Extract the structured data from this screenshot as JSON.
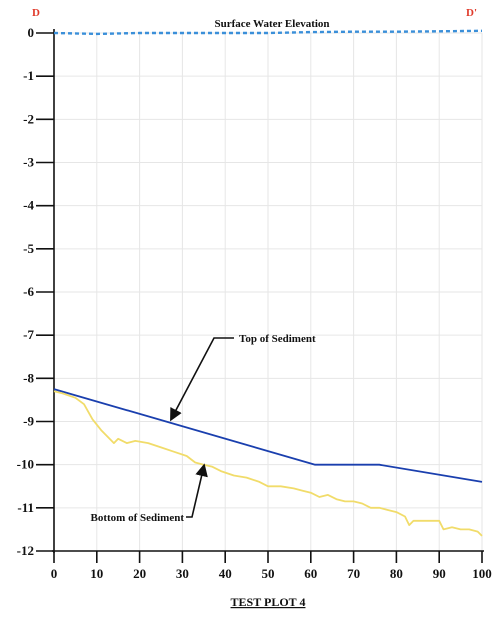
{
  "chart_data": {
    "type": "line",
    "title": "",
    "xlabel": "",
    "ylabel": "",
    "caption": "TEST PLOT 4",
    "corner_left": "D",
    "corner_right": "D'",
    "xlim": [
      0,
      100
    ],
    "ylim": [
      -12,
      0
    ],
    "x_ticks": [
      0,
      10,
      20,
      30,
      40,
      50,
      60,
      70,
      80,
      90,
      100
    ],
    "y_ticks": [
      0,
      -1,
      -2,
      -3,
      -4,
      -5,
      -6,
      -7,
      -8,
      -9,
      -10,
      -11,
      -12
    ],
    "grid": true,
    "series": [
      {
        "name": "Surface Water Elevation",
        "color": "#3a8fd9",
        "style": "dotted",
        "x": [
          0,
          10,
          20,
          30,
          40,
          50,
          60,
          70,
          80,
          90,
          100
        ],
        "y": [
          0,
          -0.02,
          0,
          0,
          0,
          0,
          0.02,
          0.03,
          0.03,
          0.04,
          0.05
        ]
      },
      {
        "name": "Top of Sediment",
        "color": "#1a3fae",
        "style": "solid",
        "x": [
          0,
          61,
          76,
          100
        ],
        "y": [
          -8.25,
          -10.0,
          -10.0,
          -10.4
        ]
      },
      {
        "name": "Bottom of Sediment",
        "color": "#f1dc6a",
        "style": "solid",
        "x": [
          0,
          2,
          5,
          7,
          9,
          11,
          13,
          14,
          15,
          17,
          19,
          22,
          25,
          28,
          31,
          33,
          35,
          37,
          39,
          42,
          45,
          48,
          50,
          53,
          56,
          58,
          60,
          62,
          64,
          66,
          68,
          70,
          72,
          74,
          76,
          78,
          80,
          82,
          83,
          84,
          86,
          88,
          90,
          91,
          93,
          95,
          97,
          99,
          100
        ],
        "y": [
          -8.3,
          -8.35,
          -8.45,
          -8.6,
          -8.95,
          -9.2,
          -9.4,
          -9.5,
          -9.4,
          -9.5,
          -9.45,
          -9.5,
          -9.6,
          -9.7,
          -9.8,
          -9.95,
          -10.0,
          -10.05,
          -10.15,
          -10.25,
          -10.3,
          -10.4,
          -10.5,
          -10.5,
          -10.55,
          -10.6,
          -10.65,
          -10.75,
          -10.7,
          -10.8,
          -10.85,
          -10.85,
          -10.9,
          -11.0,
          -11.0,
          -11.05,
          -11.1,
          -11.2,
          -11.4,
          -11.3,
          -11.3,
          -11.3,
          -11.3,
          -11.5,
          -11.45,
          -11.5,
          -11.5,
          -11.55,
          -11.65
        ]
      }
    ],
    "annotations": [
      {
        "text": "Surface Water Elevation",
        "target_series": "Surface Water Elevation"
      },
      {
        "text": "Top of Sediment",
        "target_series": "Top of Sediment",
        "point_x": 27,
        "point_y": -9.0
      },
      {
        "text": "Bottom of Sediment",
        "target_series": "Bottom of Sediment",
        "point_x": 35,
        "point_y": -9.95
      }
    ]
  }
}
